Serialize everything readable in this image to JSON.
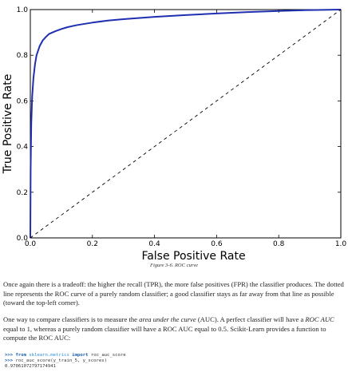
{
  "chart_data": {
    "type": "line",
    "title": "",
    "xlabel": "False Positive Rate",
    "ylabel": "True Positive Rate",
    "xlim": [
      0.0,
      1.0
    ],
    "ylim": [
      0.0,
      1.0
    ],
    "x_ticks": [
      "0.0",
      "0.2",
      "0.4",
      "0.6",
      "0.8",
      "1.0"
    ],
    "y_ticks": [
      "0.0",
      "0.2",
      "0.4",
      "0.6",
      "0.8",
      "1.0"
    ],
    "grid": false,
    "series": [
      {
        "style": "solid",
        "color": "#1f2fb0",
        "x": [
          0.0,
          0.001,
          0.003,
          0.006,
          0.01,
          0.015,
          0.02,
          0.03,
          0.04,
          0.05,
          0.06,
          0.08,
          0.1,
          0.12,
          0.15,
          0.2,
          0.25,
          0.3,
          0.4,
          0.5,
          0.6,
          0.7,
          0.8,
          0.9,
          1.0
        ],
        "y": [
          0.0,
          0.3,
          0.5,
          0.62,
          0.7,
          0.76,
          0.8,
          0.84,
          0.865,
          0.88,
          0.893,
          0.905,
          0.915,
          0.923,
          0.932,
          0.943,
          0.952,
          0.958,
          0.968,
          0.976,
          0.983,
          0.989,
          0.994,
          0.998,
          1.0
        ]
      },
      {
        "style": "dashed",
        "color": "#000000",
        "x": [
          0.0,
          1.0
        ],
        "y": [
          0.0,
          1.0
        ]
      }
    ]
  },
  "caption": "Figure 3-6. ROC curve",
  "paragraph1": "Once again there is a tradeoff: the higher the recall (TPR), the more false positives (FPR) the classifier produces. The dotted line represents the ROC curve of a purely random classifier; a good classifier stays as far away from that line as possible (toward the top-left corner).",
  "paragraph2": {
    "a": "One way to compare classifiers is to measure the ",
    "em1": "area under the curve",
    "b": " (AUC). A perfect classifier will have a ",
    "em2": "ROC AUC",
    "c": " equal to 1, whereas a purely random classifier will have a ROC AUC equal to 0.5. Scikit-Learn provides a function to compute the ROC AUC:"
  },
  "code": {
    "prompt": ">>>",
    "line1_from": "from",
    "line1_module": "sklearn.metrics",
    "line1_import": "import",
    "line1_name": "roc_auc_score",
    "line2": "roc_auc_score(y_train_5, y_scores)",
    "output": "0.97061072797174941"
  }
}
